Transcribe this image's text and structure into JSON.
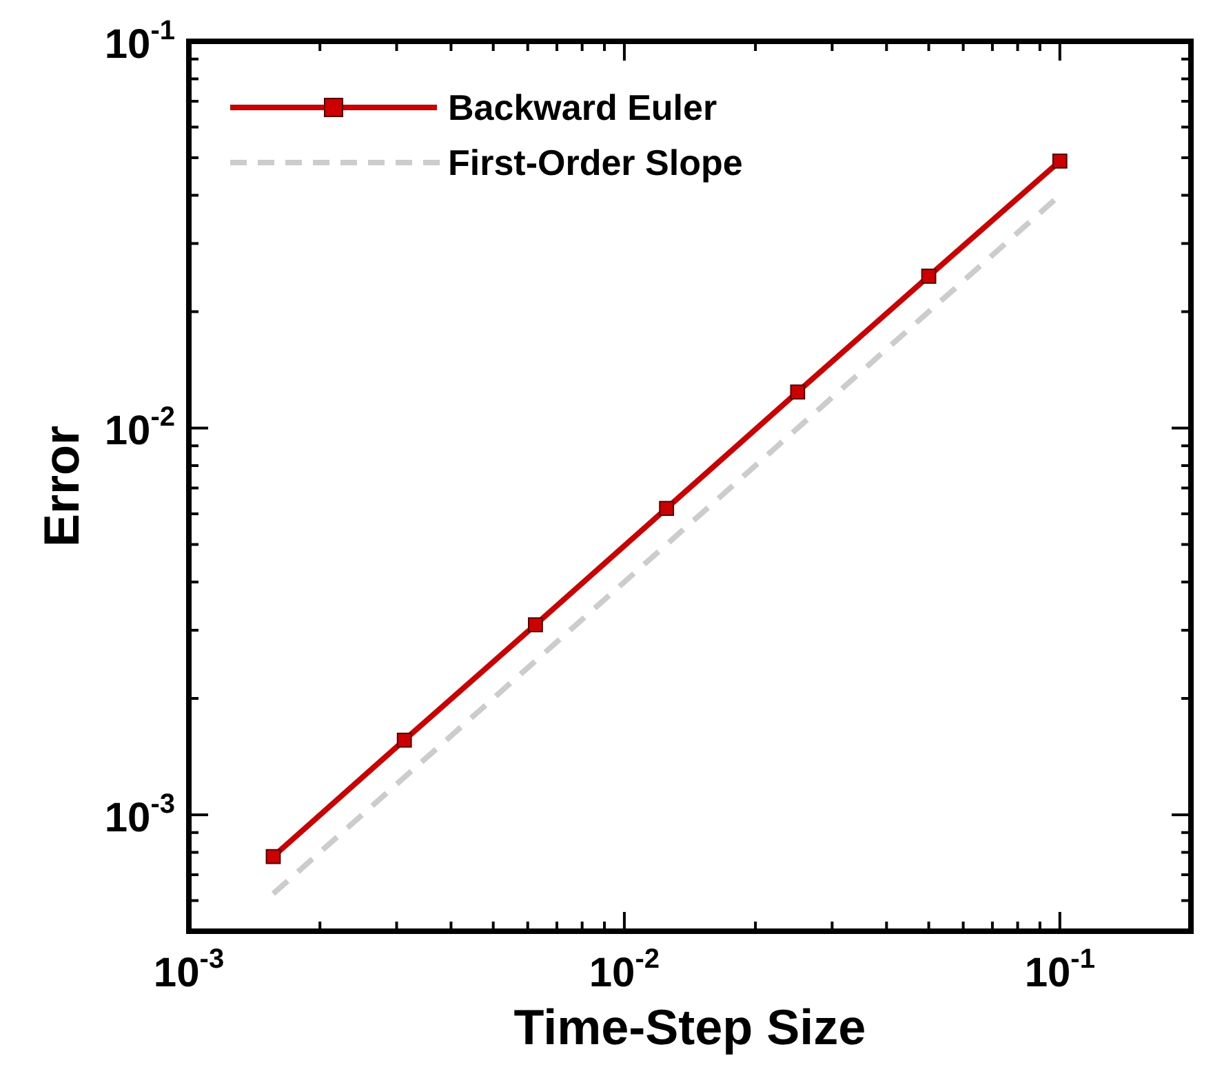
{
  "chart_data": {
    "type": "line",
    "xlabel": "Time-Step Size",
    "ylabel": "Error",
    "log": "xy",
    "legend": "top left",
    "grid": false,
    "x": [
      0.0015625,
      0.003125,
      0.00625,
      0.0125,
      0.025,
      0.05,
      0.1
    ],
    "series": [
      {
        "name": "Backward Euler",
        "color": "#cc0000",
        "marker": "square",
        "line_style": "solid",
        "values": [
          0.00078,
          0.00156,
          0.0031,
          0.0062,
          0.0124,
          0.0247,
          0.049
        ]
      },
      {
        "name": "First-Order Slope",
        "color": "#cccccc",
        "marker": "none",
        "line_style": "dashed",
        "values": [
          0.000625,
          0.00125,
          0.0025,
          0.005,
          0.01,
          0.02,
          0.04
        ]
      }
    ],
    "xlim": [
      0.001,
      0.2
    ],
    "xticks": [
      {
        "value": 0.001,
        "label": "10$^{-3}$"
      },
      {
        "value": 0.002,
        "label": null
      },
      {
        "value": 0.003,
        "label": null
      },
      {
        "value": 0.004,
        "label": null
      },
      {
        "value": 0.005,
        "label": null
      },
      {
        "value": 0.006,
        "label": null
      },
      {
        "value": 0.007,
        "label": null
      },
      {
        "value": 0.008,
        "label": null
      },
      {
        "value": 0.009,
        "label": null
      },
      {
        "value": 0.01,
        "label": "10$^{-2}$"
      },
      {
        "value": 0.02,
        "label": null
      },
      {
        "value": 0.03,
        "label": null
      },
      {
        "value": 0.04,
        "label": null
      },
      {
        "value": 0.05,
        "label": null
      },
      {
        "value": 0.06,
        "label": null
      },
      {
        "value": 0.07,
        "label": null
      },
      {
        "value": 0.08,
        "label": null
      },
      {
        "value": 0.09,
        "label": null
      },
      {
        "value": 0.1,
        "label": "10$^{-1}$"
      },
      {
        "value": 0.2,
        "label": null
      }
    ],
    "ylim": [
      0.0005,
      0.1
    ],
    "yticks": [
      {
        "value": 0.0005,
        "label": null
      },
      {
        "value": 0.0006,
        "label": null
      },
      {
        "value": 0.0007,
        "label": null
      },
      {
        "value": 0.0008,
        "label": null
      },
      {
        "value": 0.0009,
        "label": null
      },
      {
        "value": 0.001,
        "label": "10$^{-3}$"
      },
      {
        "value": 0.002,
        "label": null
      },
      {
        "value": 0.003,
        "label": null
      },
      {
        "value": 0.004,
        "label": null
      },
      {
        "value": 0.005,
        "label": null
      },
      {
        "value": 0.006,
        "label": null
      },
      {
        "value": 0.007,
        "label": null
      },
      {
        "value": 0.008,
        "label": null
      },
      {
        "value": 0.009,
        "label": null
      },
      {
        "value": 0.01,
        "label": "10$^{-2}$"
      },
      {
        "value": 0.02,
        "label": null
      },
      {
        "value": 0.03,
        "label": null
      },
      {
        "value": 0.04,
        "label": null
      },
      {
        "value": 0.05,
        "label": null
      },
      {
        "value": 0.06,
        "label": null
      },
      {
        "value": 0.07,
        "label": null
      },
      {
        "value": 0.08,
        "label": null
      },
      {
        "value": 0.09,
        "label": null
      },
      {
        "value": 0.1,
        "label": "10$^{-1}$"
      }
    ]
  }
}
